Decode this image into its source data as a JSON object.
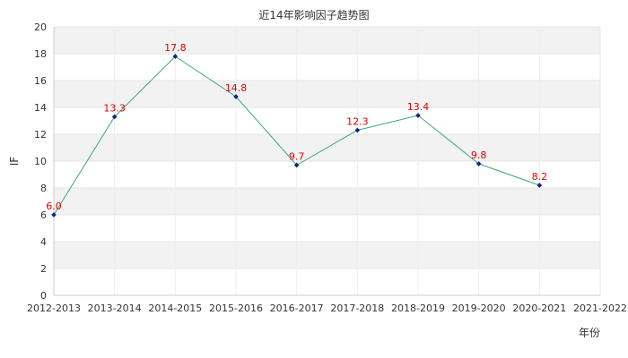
{
  "chart_data": {
    "type": "line",
    "title": "近14年影响因子趋势图",
    "xlabel": "年份",
    "ylabel": "IF",
    "categories": [
      "2012-2013",
      "2013-2014",
      "2014-2015",
      "2015-2016",
      "2016-2017",
      "2017-2018",
      "2018-2019",
      "2019-2020",
      "2020-2021",
      "2021-2022"
    ],
    "series": [
      {
        "values": [
          6.0,
          13.3,
          17.8,
          14.8,
          9.7,
          12.3,
          13.4,
          9.8,
          8.2,
          null
        ]
      }
    ],
    "data_labels": [
      "6.0",
      "13.3",
      "17.8",
      "14.8",
      "9.7",
      "12.3",
      "13.4",
      "9.8",
      "8.2"
    ],
    "ylim": [
      0,
      20
    ],
    "yticks": [
      0,
      2,
      4,
      6,
      8,
      10,
      12,
      14,
      16,
      18,
      20
    ],
    "grid": true,
    "colors": {
      "line": "#3aa58c",
      "marker": "#1a237e",
      "data_label": "#e00000",
      "band": "#f2f2f2",
      "axis": "#cccccc"
    }
  }
}
